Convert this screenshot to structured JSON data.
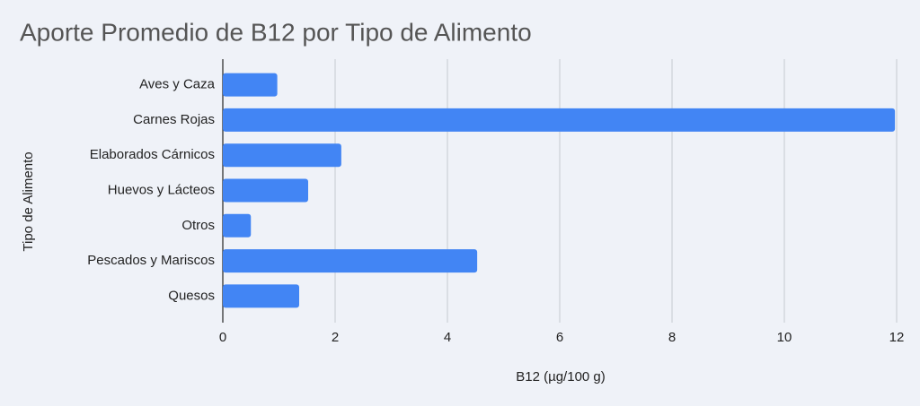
{
  "chart_data": {
    "type": "bar",
    "orientation": "horizontal",
    "title": "Aporte Promedio de B12 por Tipo de Alimento",
    "x_label": "B12 (µg/100 g)",
    "y_label": "Tipo de Alimento",
    "categories": [
      "Aves y Caza",
      "Carnes Rojas",
      "Elaborados Cárnicos",
      "Huevos y Lácteos",
      "Otros",
      "Pescados y Mariscos",
      "Quesos"
    ],
    "values": [
      0.97,
      11.97,
      2.11,
      1.52,
      0.5,
      4.53,
      1.36
    ],
    "color": "#4285f4",
    "xlim": [
      0,
      12
    ],
    "xticks": [
      0,
      2,
      4,
      6,
      8,
      10,
      12
    ],
    "grid": true
  }
}
